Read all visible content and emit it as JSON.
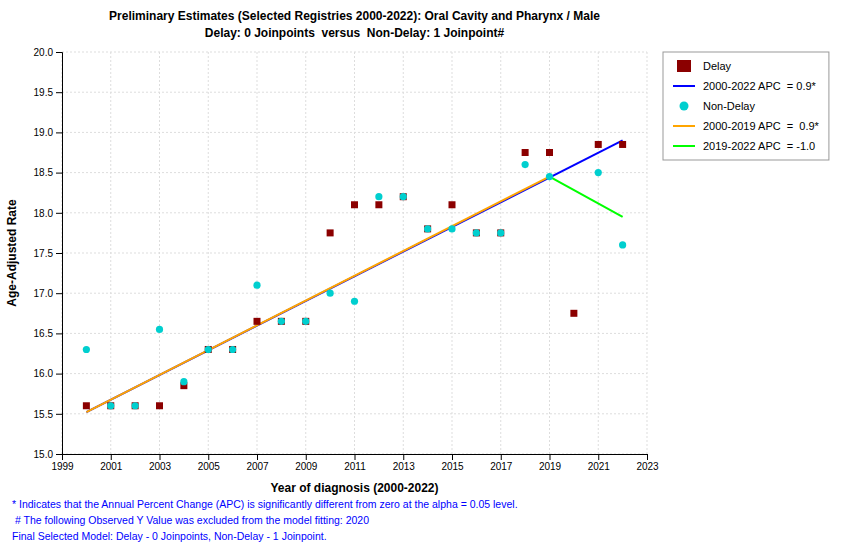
{
  "chart_data": {
    "type": "scatter",
    "title": "Preliminary Estimates (Selected Registries 2000-2022): Oral Cavity and Pharynx / Male",
    "subtitle": "Delay: 0 Joinpoints  versus  Non-Delay: 1 Joinpoint#",
    "x_label": "Year of diagnosis (2000-2022)",
    "y_label": "Age-Adjusted Rate",
    "xlim": [
      1999,
      2023
    ],
    "ylim": [
      15,
      20
    ],
    "xticks": [
      1999,
      2001,
      2003,
      2005,
      2007,
      2009,
      2011,
      2013,
      2015,
      2017,
      2019,
      2021,
      2023
    ],
    "yticks": [
      {
        "value": 15,
        "label": "15.0"
      },
      15.5,
      {
        "value": 16,
        "label": "16.0"
      },
      16.5,
      {
        "value": 17,
        "label": "17.0"
      },
      17.5,
      {
        "value": 18,
        "label": "18.0"
      },
      18.5,
      {
        "value": 19,
        "label": "19.0"
      },
      19.5,
      {
        "value": 20,
        "label": "20.0"
      }
    ],
    "grid": true,
    "legend": "right",
    "series": [
      {
        "name": "Delay",
        "type": "scatter",
        "marker": "square",
        "color": "#8B0000",
        "x": [
          2000,
          2001,
          2002,
          2003,
          2004,
          2005,
          2006,
          2007,
          2008,
          2009,
          2010,
          2011,
          2012,
          2013,
          2014,
          2015,
          2016,
          2017,
          2018,
          2019,
          2020,
          2021,
          2022
        ],
        "values": [
          15.6,
          15.6,
          15.6,
          15.6,
          15.85,
          16.3,
          16.3,
          16.65,
          16.65,
          16.65,
          17.75,
          18.1,
          18.1,
          18.2,
          17.8,
          18.1,
          17.75,
          17.75,
          18.75,
          18.75,
          16.75,
          18.85,
          18.85
        ]
      },
      {
        "name": "2000-2022 APC  = 0.9*",
        "type": "line",
        "color": "blue",
        "x": [
          2000,
          2022
        ],
        "values": [
          15.52,
          18.9
        ]
      },
      {
        "name": "Non-Delay",
        "type": "scatter",
        "marker": "circle",
        "color": "#00CFCF",
        "x": [
          2000,
          2001,
          2002,
          2003,
          2004,
          2005,
          2006,
          2007,
          2008,
          2009,
          2010,
          2011,
          2012,
          2013,
          2014,
          2015,
          2016,
          2017,
          2018,
          2019,
          2021,
          2022
        ],
        "values": [
          16.3,
          15.6,
          15.6,
          16.55,
          15.9,
          16.3,
          16.3,
          17.1,
          16.65,
          16.65,
          17.0,
          16.9,
          18.2,
          18.2,
          17.8,
          17.8,
          17.75,
          17.75,
          18.6,
          18.45,
          18.5,
          17.6
        ]
      },
      {
        "name": "2000-2019 APC  =  0.9*",
        "type": "line",
        "color": "orange",
        "x": [
          2000,
          2019
        ],
        "values": [
          15.52,
          18.45
        ]
      },
      {
        "name": "2019-2022 APC  = -1.0",
        "type": "line",
        "color": "lime",
        "x": [
          2019,
          2022
        ],
        "values": [
          18.45,
          17.95
        ]
      }
    ],
    "annotations": [
      "* Indicates that the Annual Percent Change (APC) is significantly different from zero at the alpha = 0.05 level.",
      " # The following Observed Y Value was excluded from the model fitting: 2020",
      "Final Selected Model: Delay - 0 Joinpoints, Non-Delay - 1 Joinpoint."
    ]
  }
}
